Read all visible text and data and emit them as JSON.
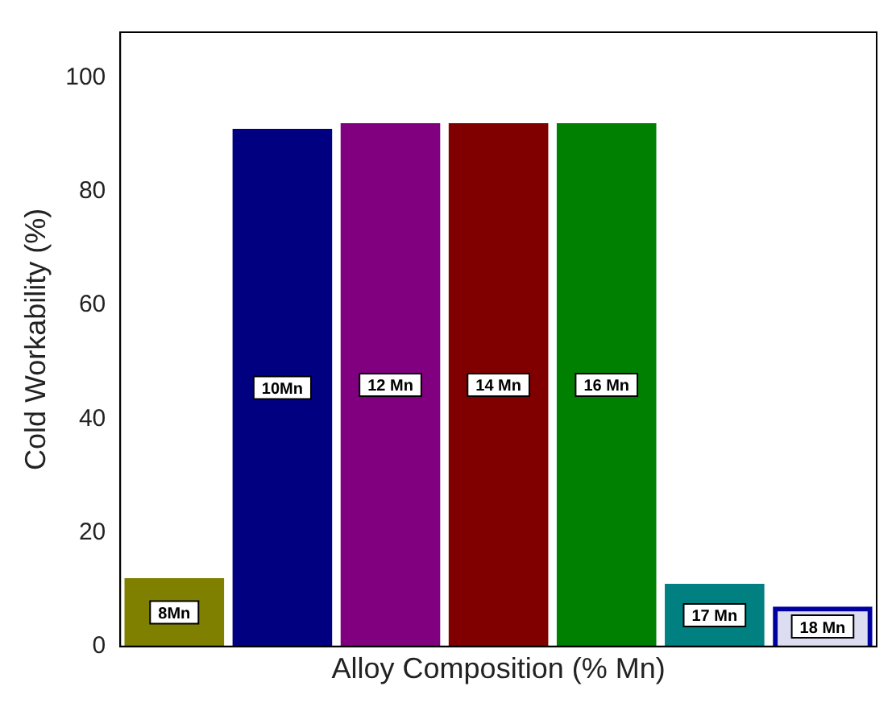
{
  "chart_data": {
    "type": "bar",
    "xlabel": "Alloy Composition (% Mn)",
    "ylabel": "Cold Workability (%)",
    "categories": [
      "8Mn",
      "10Mn",
      "12 Mn",
      "14 Mn",
      "16 Mn",
      "17 Mn",
      "18 Mn"
    ],
    "values": [
      12,
      91,
      92,
      92,
      92,
      11,
      7
    ],
    "colors": [
      "#7f7f00",
      "#000080",
      "#800080",
      "#800000",
      "#008000",
      "#008080",
      "#0000a0"
    ],
    "ylim": [
      0,
      108
    ],
    "yticks": [
      0,
      20,
      40,
      60,
      80,
      100
    ],
    "grid": false,
    "legend": false,
    "tick_labels": "y"
  }
}
